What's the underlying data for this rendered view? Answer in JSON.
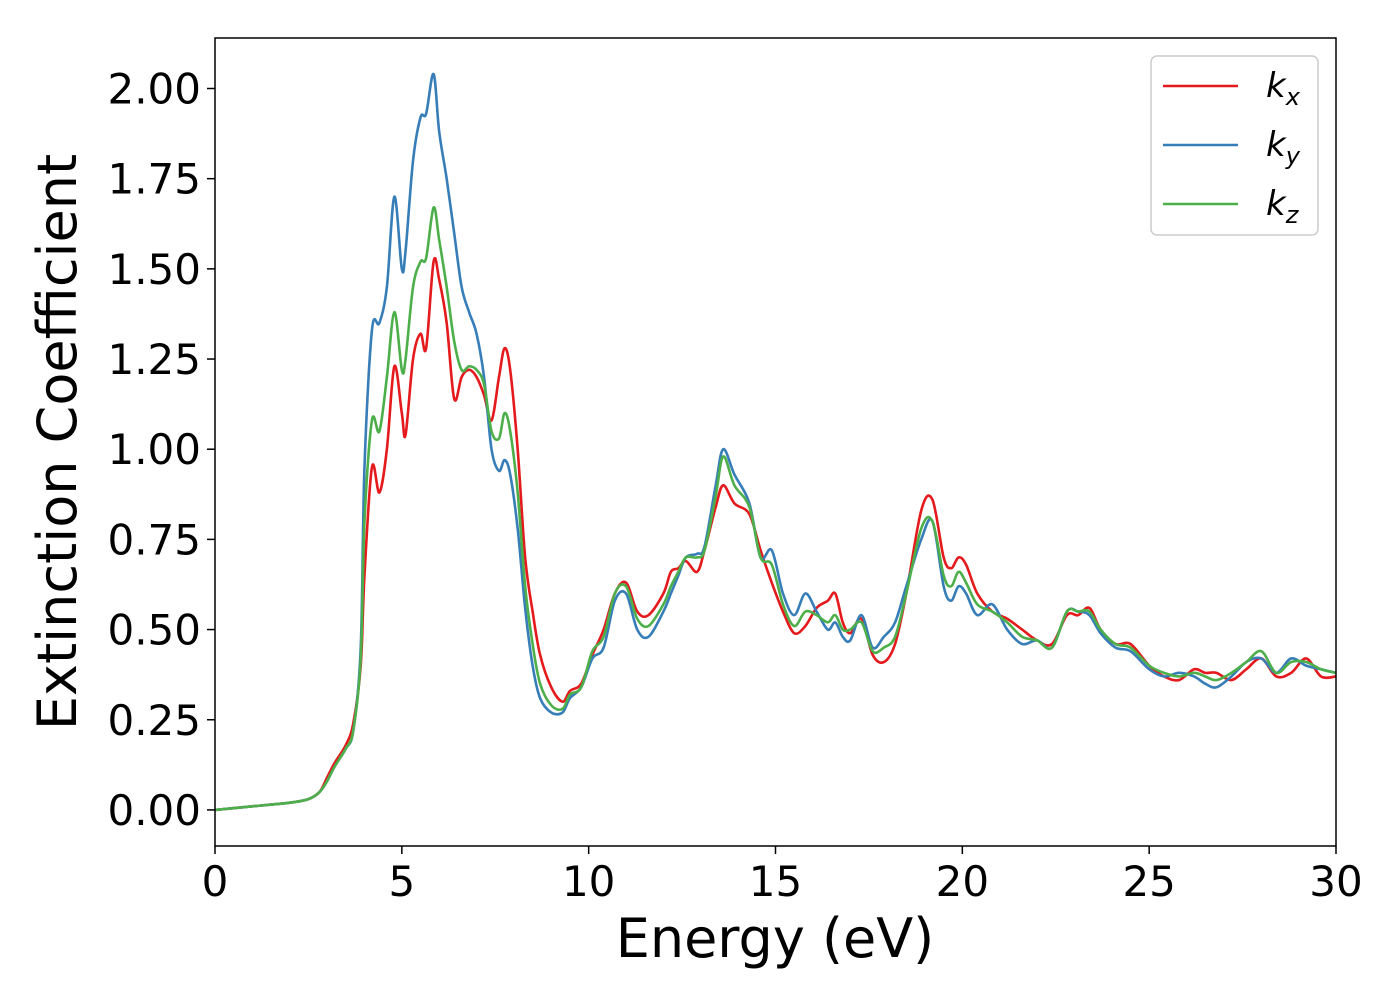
{
  "chart_data": {
    "type": "line",
    "title": "",
    "xlabel": "Energy (eV)",
    "ylabel": "Extinction Coefficient",
    "xlim": [
      0,
      30
    ],
    "ylim": [
      -0.1,
      2.14
    ],
    "xticks": [
      0,
      5,
      10,
      15,
      20,
      25,
      30
    ],
    "xtick_labels": [
      "0",
      "5",
      "10",
      "15",
      "20",
      "25",
      "30"
    ],
    "yticks": [
      0.0,
      0.25,
      0.5,
      0.75,
      1.0,
      1.25,
      1.5,
      1.75,
      2.0
    ],
    "ytick_labels": [
      "0.00",
      "0.25",
      "0.50",
      "0.75",
      "1.00",
      "1.25",
      "1.50",
      "1.75",
      "2.00"
    ],
    "grid": false,
    "legend_position": "top-right",
    "series": [
      {
        "name": "k",
        "subscript": "x",
        "color": "#e41a1c",
        "x": [
          0,
          1,
          2,
          2.5,
          2.8,
          3.0,
          3.2,
          3.5,
          3.7,
          3.9,
          4.0,
          4.2,
          4.4,
          4.6,
          4.8,
          5.0,
          5.1,
          5.3,
          5.5,
          5.65,
          5.85,
          6.0,
          6.2,
          6.4,
          6.6,
          6.8,
          7.0,
          7.2,
          7.4,
          7.6,
          7.75,
          7.9,
          8.1,
          8.3,
          8.5,
          8.7,
          9.0,
          9.3,
          9.5,
          9.8,
          10.1,
          10.4,
          10.7,
          11.0,
          11.3,
          11.6,
          12.0,
          12.2,
          12.4,
          12.6,
          12.9,
          13.1,
          13.4,
          13.6,
          13.9,
          14.3,
          14.6,
          14.9,
          15.2,
          15.5,
          15.8,
          16.1,
          16.4,
          16.6,
          16.8,
          17.0,
          17.3,
          17.6,
          17.9,
          18.2,
          18.5,
          18.9,
          19.2,
          19.5,
          19.7,
          19.9,
          20.1,
          20.4,
          20.8,
          21.2,
          21.6,
          22.0,
          22.4,
          22.8,
          23.1,
          23.4,
          23.7,
          24.1,
          24.5,
          25.0,
          25.4,
          25.8,
          26.2,
          26.5,
          26.8,
          27.2,
          27.6,
          28.0,
          28.4,
          28.8,
          29.2,
          29.6,
          30
        ],
        "y": [
          0,
          0.01,
          0.02,
          0.03,
          0.05,
          0.09,
          0.13,
          0.18,
          0.24,
          0.4,
          0.65,
          0.95,
          0.88,
          1.0,
          1.23,
          1.1,
          1.04,
          1.25,
          1.32,
          1.28,
          1.52,
          1.47,
          1.35,
          1.14,
          1.2,
          1.22,
          1.2,
          1.15,
          1.08,
          1.2,
          1.28,
          1.22,
          1.0,
          0.7,
          0.55,
          0.43,
          0.34,
          0.3,
          0.33,
          0.35,
          0.43,
          0.5,
          0.6,
          0.63,
          0.55,
          0.54,
          0.6,
          0.66,
          0.67,
          0.69,
          0.66,
          0.72,
          0.84,
          0.9,
          0.85,
          0.82,
          0.72,
          0.63,
          0.55,
          0.49,
          0.51,
          0.56,
          0.58,
          0.6,
          0.52,
          0.49,
          0.53,
          0.43,
          0.41,
          0.46,
          0.6,
          0.83,
          0.86,
          0.7,
          0.67,
          0.7,
          0.68,
          0.6,
          0.55,
          0.53,
          0.5,
          0.47,
          0.46,
          0.54,
          0.54,
          0.56,
          0.5,
          0.46,
          0.46,
          0.4,
          0.37,
          0.36,
          0.39,
          0.38,
          0.38,
          0.36,
          0.39,
          0.42,
          0.37,
          0.38,
          0.42,
          0.37,
          0.37
        ]
      },
      {
        "name": "k",
        "subscript": "y",
        "color": "#377eb8",
        "x": [
          0,
          1,
          2,
          2.5,
          2.8,
          3.0,
          3.2,
          3.5,
          3.7,
          3.9,
          4.0,
          4.2,
          4.4,
          4.6,
          4.8,
          5.0,
          5.1,
          5.3,
          5.5,
          5.65,
          5.85,
          6.0,
          6.2,
          6.4,
          6.6,
          6.8,
          7.0,
          7.2,
          7.4,
          7.6,
          7.75,
          7.9,
          8.1,
          8.3,
          8.5,
          8.7,
          9.0,
          9.3,
          9.5,
          9.8,
          10.1,
          10.4,
          10.7,
          11.0,
          11.3,
          11.6,
          12.0,
          12.2,
          12.4,
          12.6,
          12.9,
          13.1,
          13.4,
          13.6,
          13.9,
          14.3,
          14.6,
          14.9,
          15.2,
          15.5,
          15.8,
          16.1,
          16.4,
          16.6,
          16.8,
          17.0,
          17.3,
          17.6,
          17.9,
          18.2,
          18.5,
          18.9,
          19.2,
          19.5,
          19.7,
          19.9,
          20.1,
          20.4,
          20.8,
          21.2,
          21.6,
          22.0,
          22.4,
          22.8,
          23.1,
          23.4,
          23.7,
          24.1,
          24.5,
          25.0,
          25.4,
          25.8,
          26.2,
          26.5,
          26.8,
          27.2,
          27.6,
          28.0,
          28.4,
          28.8,
          29.2,
          29.6,
          30
        ],
        "y": [
          0,
          0.01,
          0.02,
          0.03,
          0.05,
          0.08,
          0.12,
          0.17,
          0.22,
          0.45,
          0.95,
          1.33,
          1.35,
          1.45,
          1.7,
          1.5,
          1.55,
          1.8,
          1.92,
          1.93,
          2.04,
          1.88,
          1.75,
          1.6,
          1.45,
          1.38,
          1.32,
          1.2,
          1.0,
          0.94,
          0.97,
          0.93,
          0.78,
          0.56,
          0.4,
          0.31,
          0.27,
          0.27,
          0.31,
          0.34,
          0.42,
          0.45,
          0.58,
          0.6,
          0.5,
          0.48,
          0.55,
          0.6,
          0.65,
          0.7,
          0.71,
          0.73,
          0.9,
          1.0,
          0.93,
          0.85,
          0.7,
          0.72,
          0.6,
          0.54,
          0.6,
          0.55,
          0.5,
          0.52,
          0.48,
          0.47,
          0.54,
          0.45,
          0.48,
          0.52,
          0.62,
          0.75,
          0.8,
          0.62,
          0.58,
          0.62,
          0.6,
          0.54,
          0.57,
          0.5,
          0.46,
          0.47,
          0.45,
          0.55,
          0.55,
          0.54,
          0.49,
          0.45,
          0.44,
          0.39,
          0.37,
          0.38,
          0.37,
          0.35,
          0.34,
          0.37,
          0.41,
          0.42,
          0.38,
          0.42,
          0.4,
          0.39,
          0.38
        ]
      },
      {
        "name": "k",
        "subscript": "z",
        "color": "#4daf4a",
        "x": [
          0,
          1,
          2,
          2.5,
          2.8,
          3.0,
          3.2,
          3.5,
          3.7,
          3.9,
          4.0,
          4.2,
          4.4,
          4.6,
          4.8,
          5.0,
          5.1,
          5.3,
          5.5,
          5.65,
          5.85,
          6.0,
          6.2,
          6.4,
          6.6,
          6.8,
          7.0,
          7.2,
          7.4,
          7.6,
          7.75,
          7.9,
          8.1,
          8.3,
          8.5,
          8.7,
          9.0,
          9.3,
          9.5,
          9.8,
          10.1,
          10.4,
          10.7,
          11.0,
          11.3,
          11.6,
          12.0,
          12.2,
          12.4,
          12.6,
          12.9,
          13.1,
          13.4,
          13.6,
          13.9,
          14.3,
          14.6,
          14.9,
          15.2,
          15.5,
          15.8,
          16.1,
          16.4,
          16.6,
          16.8,
          17.0,
          17.3,
          17.6,
          17.9,
          18.2,
          18.5,
          18.9,
          19.2,
          19.5,
          19.7,
          19.9,
          20.1,
          20.4,
          20.8,
          21.2,
          21.6,
          22.0,
          22.4,
          22.8,
          23.1,
          23.4,
          23.7,
          24.1,
          24.5,
          25.0,
          25.4,
          25.8,
          26.2,
          26.5,
          26.8,
          27.2,
          27.6,
          28.0,
          28.4,
          28.8,
          29.2,
          29.6,
          30
        ],
        "y": [
          0,
          0.01,
          0.02,
          0.03,
          0.05,
          0.08,
          0.12,
          0.17,
          0.22,
          0.42,
          0.8,
          1.08,
          1.05,
          1.2,
          1.38,
          1.22,
          1.25,
          1.45,
          1.52,
          1.53,
          1.67,
          1.58,
          1.45,
          1.3,
          1.22,
          1.23,
          1.22,
          1.18,
          1.05,
          1.03,
          1.1,
          1.05,
          0.88,
          0.62,
          0.46,
          0.35,
          0.29,
          0.28,
          0.32,
          0.34,
          0.44,
          0.48,
          0.6,
          0.62,
          0.53,
          0.51,
          0.57,
          0.62,
          0.66,
          0.7,
          0.7,
          0.72,
          0.87,
          0.98,
          0.9,
          0.84,
          0.7,
          0.68,
          0.57,
          0.51,
          0.55,
          0.54,
          0.52,
          0.54,
          0.5,
          0.5,
          0.52,
          0.44,
          0.45,
          0.48,
          0.6,
          0.78,
          0.8,
          0.65,
          0.62,
          0.66,
          0.63,
          0.57,
          0.55,
          0.52,
          0.48,
          0.47,
          0.45,
          0.55,
          0.55,
          0.55,
          0.5,
          0.46,
          0.45,
          0.4,
          0.38,
          0.37,
          0.38,
          0.37,
          0.36,
          0.38,
          0.41,
          0.44,
          0.38,
          0.41,
          0.41,
          0.39,
          0.38
        ]
      }
    ]
  }
}
